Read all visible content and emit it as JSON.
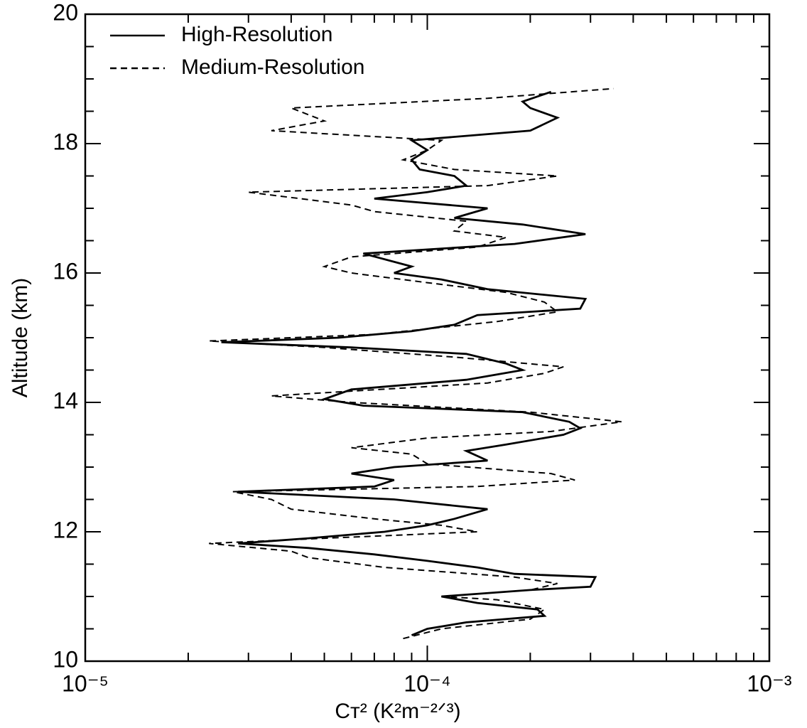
{
  "chart_data": {
    "type": "line",
    "xlabel": "Cᴛ² (K²m⁻²ᐟ³)",
    "ylabel": "Altitude (km)",
    "xscale": "log",
    "xlim": [
      1e-05,
      0.001
    ],
    "xticks": [
      {
        "value": 1e-05,
        "label": "10⁻⁵"
      },
      {
        "value": 0.0001,
        "label": "10⁻⁴"
      },
      {
        "value": 0.001,
        "label": "10⁻³"
      }
    ],
    "xminorticks": [
      2e-05,
      3e-05,
      4e-05,
      5e-05,
      6e-05,
      7e-05,
      8e-05,
      9e-05,
      0.0002,
      0.0003,
      0.0004,
      0.0005,
      0.0006,
      0.0007,
      0.0008,
      0.0009
    ],
    "ylim": [
      10,
      20
    ],
    "yticks": [
      10,
      12,
      14,
      16,
      18,
      20
    ],
    "yminorticks": [
      10.5,
      11,
      11.5,
      12.5,
      13,
      13.5,
      14.5,
      15,
      15.5,
      16.5,
      17,
      17.5,
      18.5,
      19,
      19.5
    ],
    "legend": "upper left",
    "series": [
      {
        "name": "High-Resolution",
        "color": "#000000",
        "dash": "solid",
        "x": [
          9e-05,
          0.0001,
          0.00013,
          0.00022,
          0.00021,
          0.00014,
          0.00011,
          0.0002,
          0.0003,
          0.00031,
          0.00018,
          0.00014,
          0.0001,
          7e-05,
          4.5e-05,
          2.8e-05,
          4.5e-05,
          7.5e-05,
          0.0001,
          0.00012,
          0.00015,
          8e-05,
          2.8e-05,
          7e-05,
          8e-05,
          6e-05,
          8e-05,
          0.00015,
          0.00013,
          0.00017,
          0.00025,
          0.00028,
          0.00026,
          0.00019,
          6.5e-05,
          5e-05,
          6e-05,
          0.00013,
          0.00019,
          0.00017,
          0.00013,
          6e-05,
          2.5e-05,
          5.5e-05,
          9e-05,
          0.00012,
          0.00014,
          0.00028,
          0.00029,
          0.00015,
          0.00011,
          8e-05,
          9e-05,
          6.5e-05,
          0.00018,
          0.00029,
          0.00019,
          0.00012,
          0.00015,
          7e-05,
          0.0001,
          0.00013,
          0.00012,
          9.5e-05,
          9e-05,
          0.0001,
          9e-05,
          0.0002,
          0.00024,
          0.0002,
          0.00019,
          0.00023
        ],
        "y": [
          10.4,
          10.5,
          10.6,
          10.7,
          10.8,
          10.9,
          11,
          11.1,
          11.15,
          11.3,
          11.35,
          11.45,
          11.55,
          11.65,
          11.75,
          11.82,
          11.9,
          12,
          12.1,
          12.2,
          12.35,
          12.5,
          12.62,
          12.7,
          12.8,
          12.9,
          13,
          13.1,
          13.25,
          13.35,
          13.5,
          13.6,
          13.7,
          13.85,
          13.95,
          14.05,
          14.2,
          14.35,
          14.5,
          14.6,
          14.75,
          14.85,
          14.93,
          15,
          15.1,
          15.2,
          15.35,
          15.45,
          15.6,
          15.75,
          15.9,
          16,
          16.1,
          16.3,
          16.45,
          16.6,
          16.75,
          16.85,
          17,
          17.15,
          17.25,
          17.35,
          17.5,
          17.6,
          17.75,
          17.9,
          18.05,
          18.2,
          18.4,
          18.55,
          18.65,
          18.8
        ]
      },
      {
        "name": "Medium-Resolution",
        "color": "#000000",
        "dash": "dashed",
        "x": [
          8.5e-05,
          0.00011,
          0.0002,
          0.00022,
          0.00016,
          0.00011,
          0.0002,
          0.00024,
          0.00018,
          7.5e-05,
          4.5e-05,
          4e-05,
          2.3e-05,
          5e-05,
          0.00014,
          0.00011,
          7e-05,
          4e-05,
          3.5e-05,
          2.7e-05,
          0.00014,
          0.00027,
          0.00023,
          0.0001,
          9e-05,
          6e-05,
          0.0001,
          0.00023,
          0.00037,
          0.0002,
          6e-05,
          3.5e-05,
          0.00015,
          0.00022,
          0.00025,
          0.00012,
          5e-05,
          2.3e-05,
          7e-05,
          0.00016,
          0.00024,
          0.00022,
          0.00017,
          0.0001,
          6e-05,
          5e-05,
          6e-05,
          0.00014,
          0.00017,
          0.00012,
          0.00013,
          7e-05,
          6e-05,
          3e-05,
          0.00015,
          0.00024,
          0.00012,
          8.5e-05,
          0.0001,
          0.00011,
          3.5e-05,
          5e-05,
          4e-05,
          0.00015,
          0.00035
        ],
        "y": [
          10.35,
          10.5,
          10.65,
          10.8,
          10.95,
          11,
          11.1,
          11.2,
          11.3,
          11.45,
          11.6,
          11.7,
          11.82,
          11.9,
          12,
          12.1,
          12.2,
          12.35,
          12.5,
          12.62,
          12.7,
          12.8,
          12.9,
          13.05,
          13.2,
          13.3,
          13.45,
          13.55,
          13.7,
          13.85,
          14,
          14.1,
          14.3,
          14.45,
          14.55,
          14.7,
          14.85,
          14.95,
          15.05,
          15.25,
          15.4,
          15.55,
          15.7,
          15.85,
          16,
          16.1,
          16.25,
          16.4,
          16.55,
          16.65,
          16.8,
          16.95,
          17.05,
          17.25,
          17.35,
          17.5,
          17.6,
          17.75,
          17.9,
          18.05,
          18.2,
          18.35,
          18.55,
          18.7,
          18.85
        ]
      }
    ]
  }
}
